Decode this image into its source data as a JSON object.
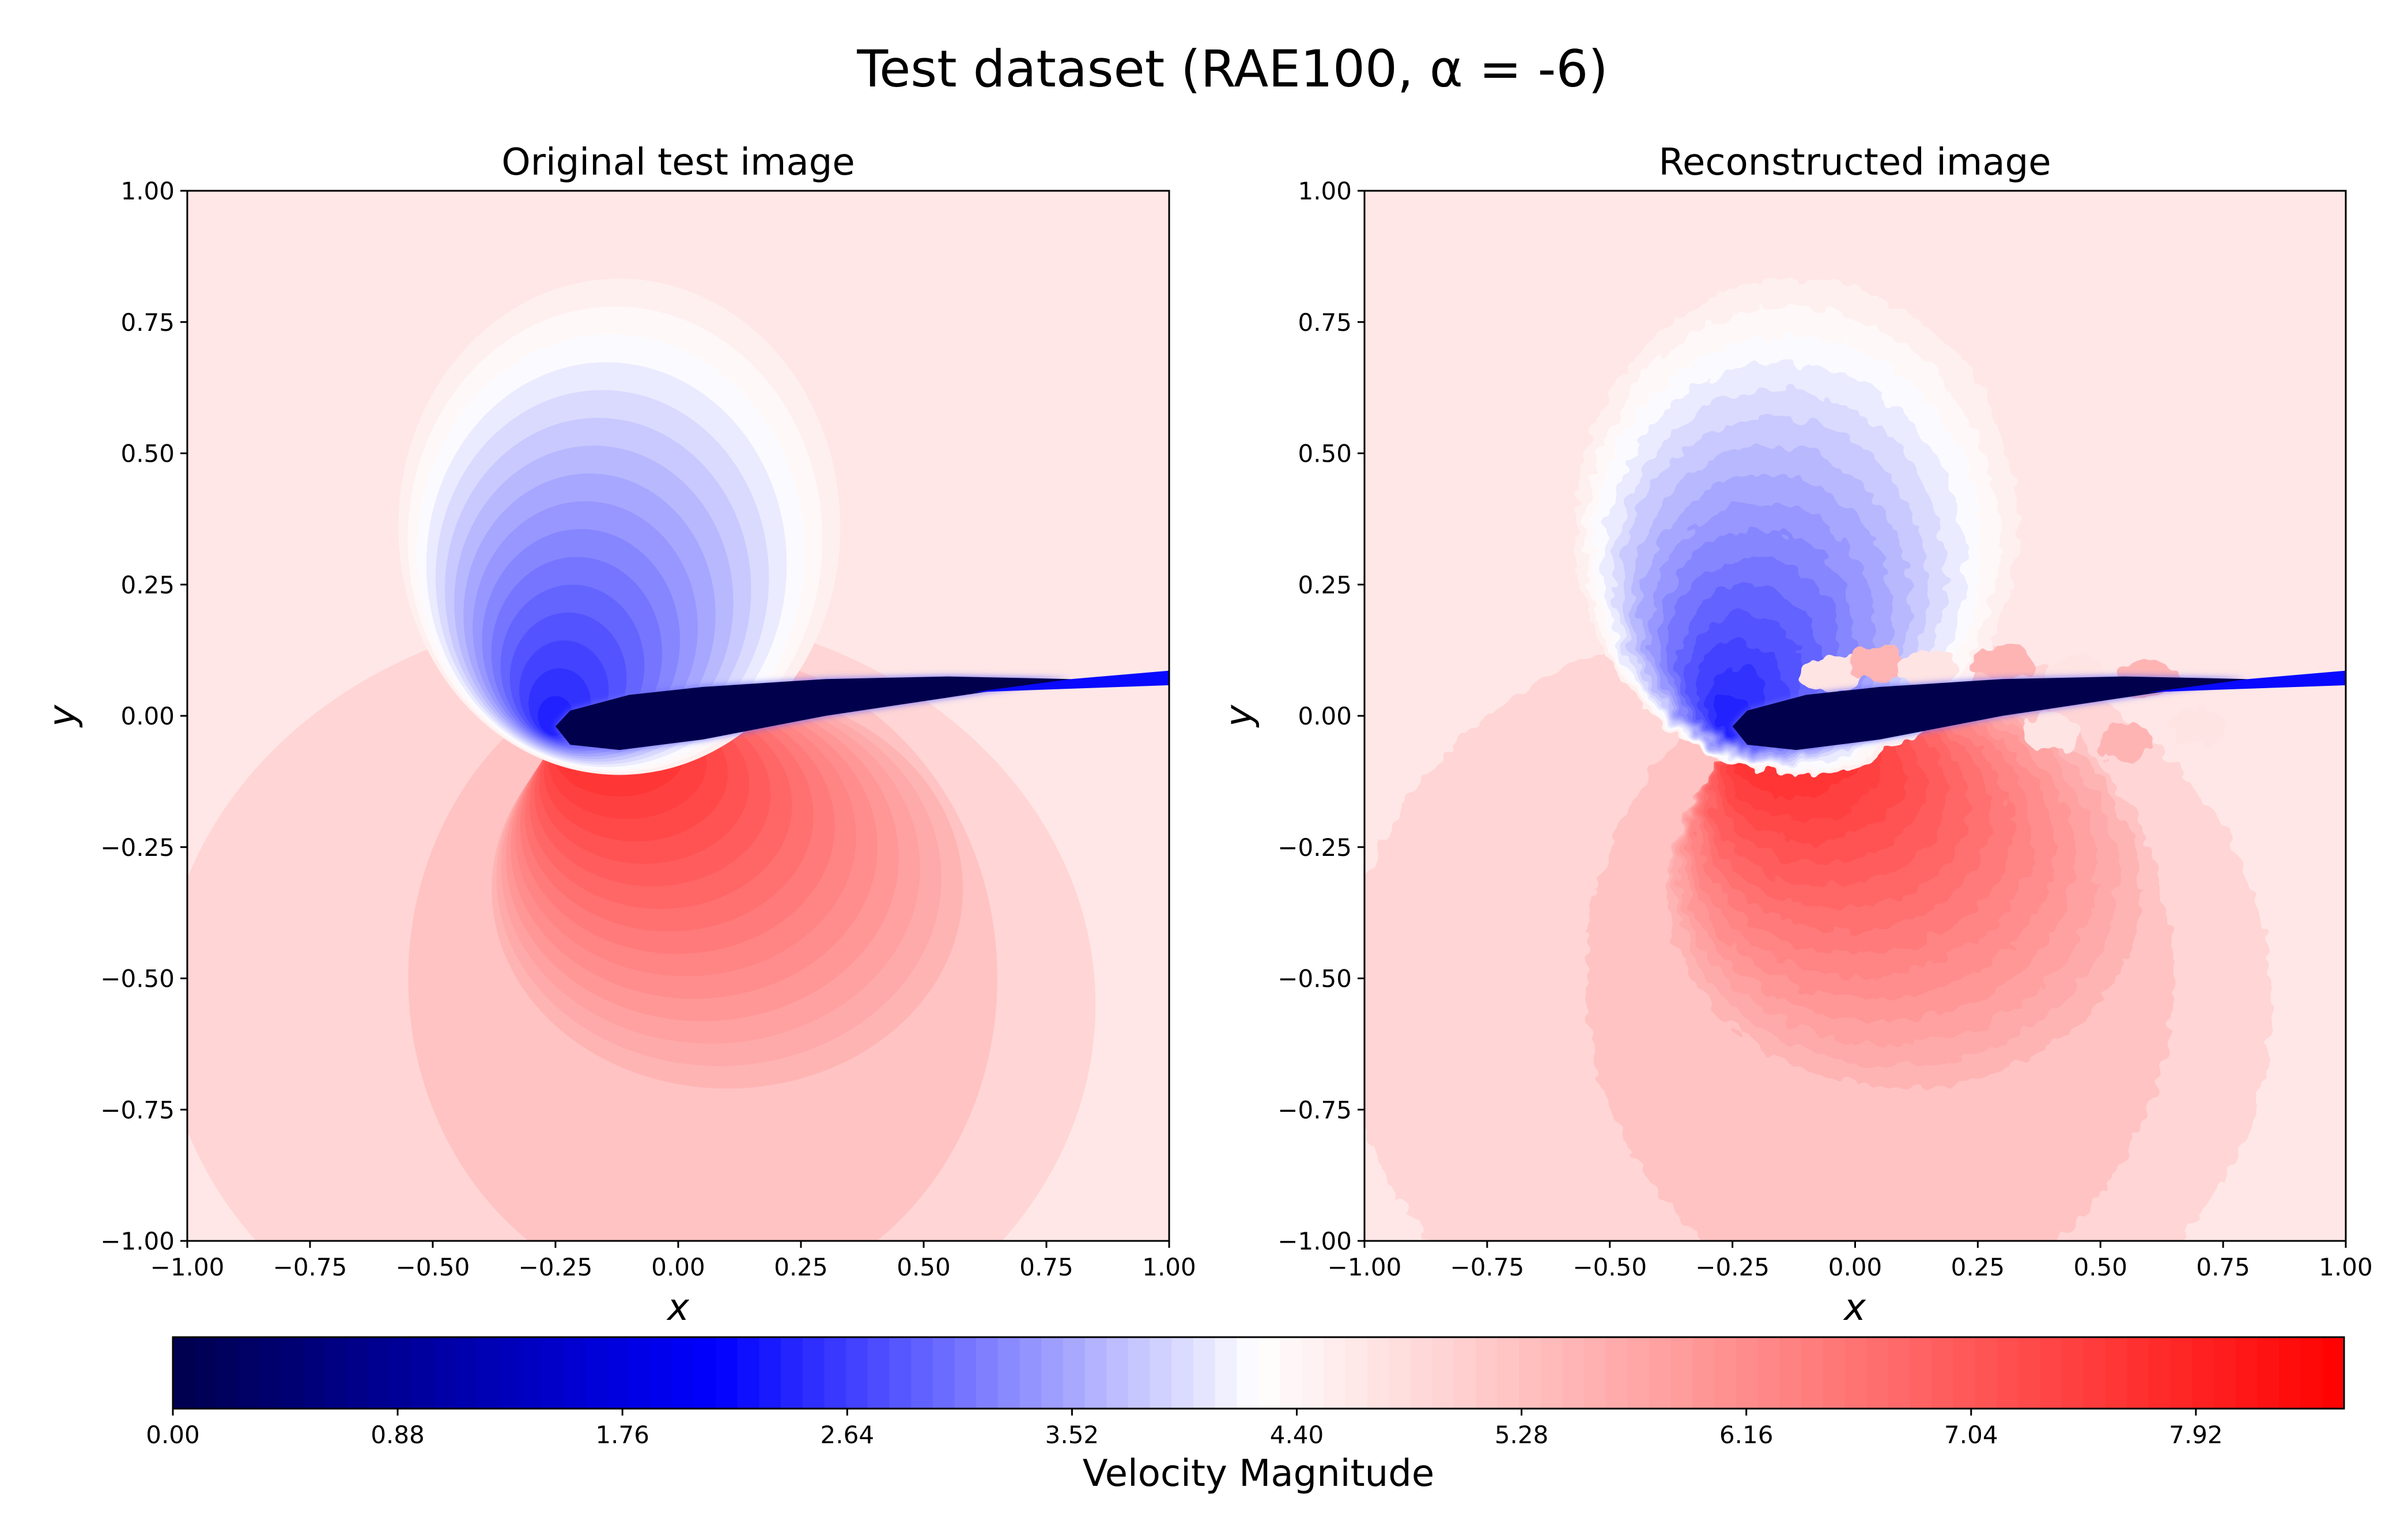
{
  "figure": {
    "title": "Test dataset (RAE100, α = -6)"
  },
  "chart_data": [
    {
      "type": "heatmap",
      "title": "Original test image",
      "xlabel": "x",
      "ylabel": "y",
      "xlim": [
        -1.0,
        1.0
      ],
      "ylim": [
        -1.0,
        1.0
      ],
      "xticks": [
        "−1.00",
        "−0.75",
        "−0.50",
        "−0.25",
        "0.00",
        "0.25",
        "0.50",
        "0.75",
        "1.00"
      ],
      "yticks": [
        "−1.00",
        "−0.75",
        "−0.50",
        "−0.25",
        "0.00",
        "0.25",
        "0.50",
        "0.75",
        "1.00"
      ],
      "grid": false,
      "field": "Velocity Magnitude around airfoil (smooth contour field)",
      "colormap": "bwr",
      "noisy": false
    },
    {
      "type": "heatmap",
      "title": "Reconstructed image",
      "xlabel": "x",
      "ylabel": "y",
      "xlim": [
        -1.0,
        1.0
      ],
      "ylim": [
        -1.0,
        1.0
      ],
      "xticks": [
        "−1.00",
        "−0.75",
        "−0.50",
        "−0.25",
        "0.00",
        "0.25",
        "0.50",
        "0.75",
        "1.00"
      ],
      "yticks": [
        "−1.00",
        "−0.75",
        "−0.50",
        "−0.25",
        "0.00",
        "0.25",
        "0.50",
        "0.75",
        "1.00"
      ],
      "grid": false,
      "field": "Velocity Magnitude around airfoil (reconstruction with artifacts)",
      "colormap": "bwr",
      "noisy": true
    }
  ],
  "colorbar": {
    "label": "Velocity Magnitude",
    "min": 0.0,
    "max": 8.5,
    "ticks": [
      0.0,
      0.88,
      1.76,
      2.64,
      3.52,
      4.4,
      5.28,
      6.16,
      7.04,
      7.92
    ],
    "tick_labels": [
      "0.00",
      "0.88",
      "1.76",
      "2.64",
      "3.52",
      "4.40",
      "5.28",
      "6.16",
      "7.04",
      "7.92"
    ],
    "colors": {
      "low": "#00004c",
      "mid_low": "#0000ff",
      "mid": "#ffffff",
      "high": "#ff0000"
    },
    "freestream_value": 4.65,
    "levels": 100
  },
  "airfoil": {
    "leading_edge_x": -0.25,
    "leading_edge_y": -0.02,
    "trailing_edge_x": 0.8,
    "trailing_edge_y": 0.07,
    "wake_end_x": 1.0,
    "wake_end_y": 0.09
  }
}
